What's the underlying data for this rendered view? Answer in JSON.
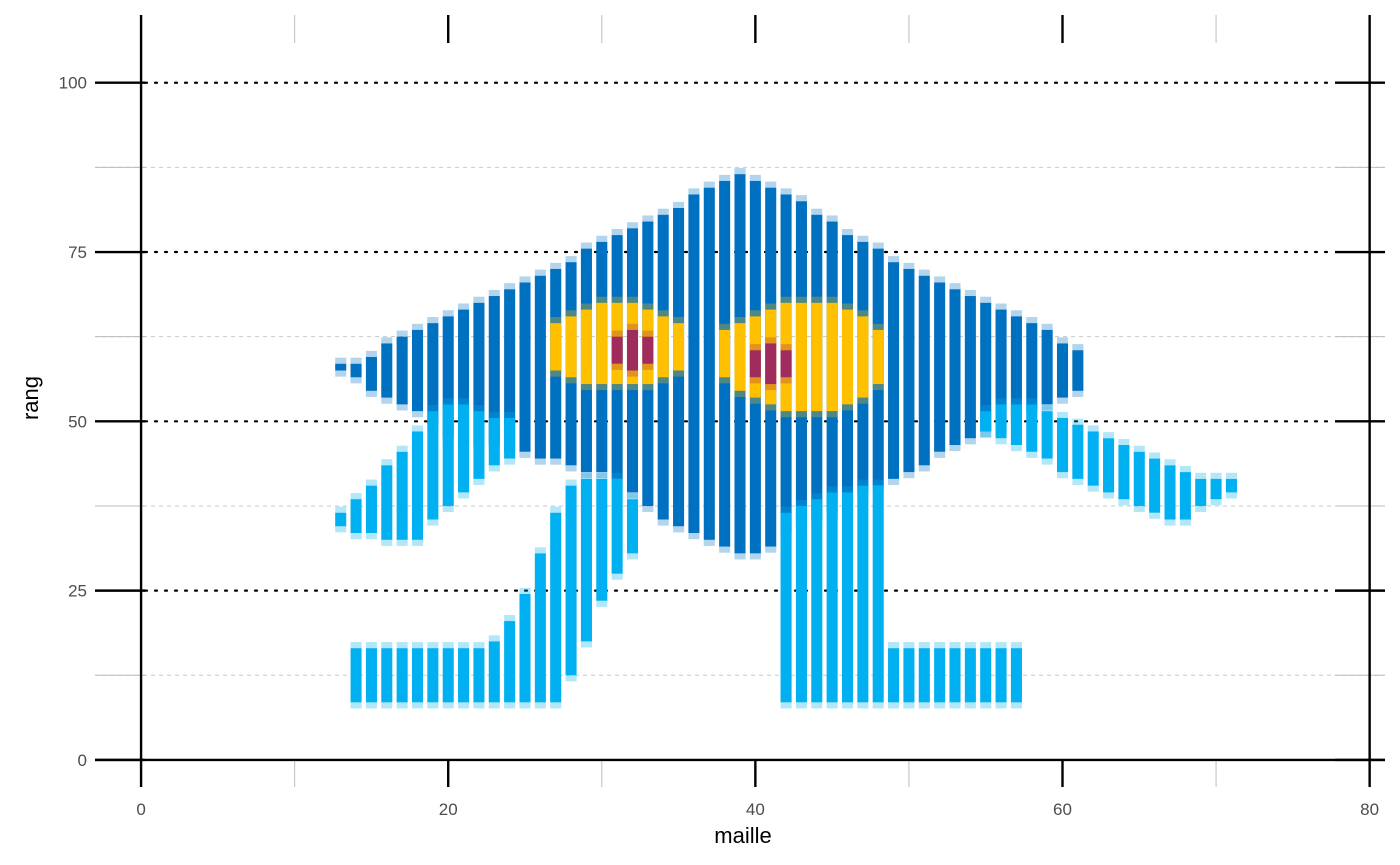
{
  "chart_data": {
    "type": "heatmap",
    "title": "",
    "xlabel": "maille",
    "ylabel": "rang",
    "xlim": [
      -3,
      81
    ],
    "ylim": [
      -4,
      110
    ],
    "x_ticks": [
      0,
      20,
      40,
      60,
      80
    ],
    "y_ticks": [
      0,
      25,
      50,
      75,
      100
    ],
    "x_minor_ticks": [
      10,
      30,
      50,
      70
    ],
    "y_minor_ticks": [
      12.5,
      37.5,
      62.5,
      87.5
    ],
    "grid": true,
    "legend": "none",
    "colors": {
      "dark_blue": "#0070c0",
      "light_blue": "#00b0f0",
      "yellow": "#ffc000",
      "maroon": "#a02b5d"
    },
    "layers": {
      "dark_body": {
        "color_key": "dark_blue",
        "columns": [
          [
            13,
            58,
            58
          ],
          [
            14,
            57,
            58
          ],
          [
            15,
            55,
            59
          ],
          [
            16,
            54,
            61
          ],
          [
            17,
            53,
            62
          ],
          [
            18,
            52,
            63
          ],
          [
            19,
            50,
            64
          ],
          [
            20,
            48,
            65
          ],
          [
            21,
            47,
            66
          ],
          [
            22,
            47,
            67
          ],
          [
            23,
            47,
            68
          ],
          [
            24,
            46,
            69
          ],
          [
            25,
            46,
            70
          ],
          [
            26,
            45,
            71
          ],
          [
            27,
            45,
            72
          ],
          [
            28,
            44,
            73
          ],
          [
            29,
            43,
            75
          ],
          [
            30,
            43,
            76
          ],
          [
            31,
            42,
            77
          ],
          [
            32,
            40,
            78
          ],
          [
            33,
            38,
            79
          ],
          [
            34,
            36,
            80
          ],
          [
            35,
            35,
            81
          ],
          [
            36,
            34,
            83
          ],
          [
            37,
            33,
            84
          ],
          [
            38,
            32,
            85
          ],
          [
            39,
            31,
            86
          ],
          [
            40,
            31,
            85
          ],
          [
            41,
            32,
            84
          ],
          [
            42,
            34,
            83
          ],
          [
            43,
            35,
            82
          ],
          [
            44,
            36,
            80
          ],
          [
            45,
            37,
            79
          ],
          [
            46,
            38,
            77
          ],
          [
            47,
            40,
            76
          ],
          [
            48,
            41,
            75
          ],
          [
            49,
            42,
            73
          ],
          [
            50,
            43,
            72
          ],
          [
            51,
            44,
            71
          ],
          [
            52,
            46,
            70
          ],
          [
            53,
            47,
            69
          ],
          [
            54,
            48,
            68
          ],
          [
            55,
            49,
            67
          ],
          [
            56,
            50,
            66
          ],
          [
            57,
            51,
            65
          ],
          [
            58,
            52,
            64
          ],
          [
            59,
            53,
            63
          ],
          [
            60,
            54,
            61
          ],
          [
            61,
            55,
            60
          ]
        ]
      },
      "light_left_arm": {
        "color_key": "light_blue",
        "columns": [
          [
            13,
            35,
            36
          ],
          [
            14,
            34,
            38
          ],
          [
            15,
            34,
            40
          ],
          [
            16,
            33,
            43
          ],
          [
            17,
            33,
            45
          ],
          [
            18,
            33,
            48
          ],
          [
            19,
            36,
            51
          ],
          [
            20,
            38,
            52
          ],
          [
            21,
            40,
            52
          ],
          [
            22,
            42,
            51
          ],
          [
            23,
            44,
            50
          ],
          [
            24,
            45,
            50
          ]
        ]
      },
      "light_right_arm": {
        "color_key": "light_blue",
        "columns": [
          [
            55,
            49,
            51
          ],
          [
            56,
            48,
            52
          ],
          [
            57,
            47,
            52
          ],
          [
            58,
            46,
            52
          ],
          [
            59,
            45,
            51
          ],
          [
            60,
            43,
            50
          ],
          [
            61,
            42,
            49
          ],
          [
            62,
            41,
            48
          ],
          [
            63,
            40,
            47
          ],
          [
            64,
            39,
            46
          ],
          [
            65,
            38,
            45
          ],
          [
            66,
            37,
            44
          ],
          [
            67,
            36,
            43
          ],
          [
            68,
            36,
            42
          ],
          [
            69,
            38,
            41
          ],
          [
            70,
            39,
            41
          ],
          [
            71,
            40,
            41
          ]
        ]
      },
      "light_left_leg": {
        "color_key": "light_blue",
        "columns": [
          [
            24,
            9,
            20
          ],
          [
            25,
            9,
            24
          ],
          [
            26,
            9,
            30
          ],
          [
            27,
            9,
            36
          ],
          [
            28,
            13,
            40
          ],
          [
            29,
            18,
            41
          ],
          [
            30,
            24,
            41
          ],
          [
            31,
            28,
            41
          ],
          [
            32,
            31,
            38
          ]
        ]
      },
      "light_left_foot": {
        "color_key": "light_blue",
        "columns": [
          [
            14,
            9,
            16
          ],
          [
            15,
            9,
            16
          ],
          [
            16,
            9,
            16
          ],
          [
            17,
            9,
            16
          ],
          [
            18,
            9,
            16
          ],
          [
            19,
            9,
            16
          ],
          [
            20,
            9,
            16
          ],
          [
            21,
            9,
            16
          ],
          [
            22,
            9,
            16
          ],
          [
            23,
            9,
            17
          ]
        ]
      },
      "light_right_leg": {
        "color_key": "light_blue",
        "columns": [
          [
            42,
            9,
            36
          ],
          [
            43,
            9,
            37
          ],
          [
            44,
            9,
            38
          ],
          [
            45,
            9,
            39
          ],
          [
            46,
            9,
            39
          ],
          [
            47,
            9,
            40
          ],
          [
            48,
            9,
            40
          ]
        ]
      },
      "light_right_foot": {
        "color_key": "light_blue",
        "columns": [
          [
            49,
            9,
            16
          ],
          [
            50,
            9,
            16
          ],
          [
            51,
            9,
            16
          ],
          [
            52,
            9,
            16
          ],
          [
            53,
            9,
            16
          ],
          [
            54,
            9,
            16
          ],
          [
            55,
            9,
            16
          ],
          [
            56,
            9,
            16
          ],
          [
            57,
            9,
            16
          ]
        ]
      },
      "eye_left": {
        "color_key": "yellow",
        "columns": [
          [
            27,
            58,
            64
          ],
          [
            28,
            57,
            65
          ],
          [
            29,
            56,
            66
          ],
          [
            30,
            56,
            67
          ],
          [
            31,
            56,
            67
          ],
          [
            32,
            56,
            67
          ],
          [
            33,
            56,
            66
          ],
          [
            34,
            57,
            65
          ],
          [
            35,
            58,
            64
          ]
        ]
      },
      "eye_right": {
        "color_key": "yellow",
        "columns": [
          [
            38,
            57,
            63
          ],
          [
            39,
            55,
            64
          ],
          [
            40,
            54,
            65
          ],
          [
            41,
            53,
            66
          ],
          [
            42,
            52,
            67
          ],
          [
            43,
            52,
            67
          ],
          [
            44,
            52,
            67
          ],
          [
            45,
            52,
            67
          ],
          [
            46,
            53,
            66
          ],
          [
            47,
            54,
            65
          ],
          [
            48,
            56,
            63
          ]
        ]
      },
      "pupil_left": {
        "color_key": "maroon",
        "columns": [
          [
            31,
            59,
            62
          ],
          [
            32,
            58,
            63
          ],
          [
            33,
            59,
            62
          ]
        ]
      },
      "pupil_right": {
        "color_key": "maroon",
        "columns": [
          [
            40,
            57,
            60
          ],
          [
            41,
            56,
            61
          ],
          [
            42,
            57,
            60
          ]
        ]
      }
    }
  }
}
